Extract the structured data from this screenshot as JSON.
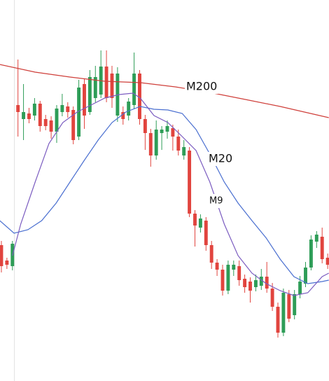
{
  "chart_data": {
    "type": "candlestick",
    "x": [
      0,
      1,
      2,
      3,
      4,
      5,
      6,
      7,
      8,
      9,
      10,
      11,
      12,
      13,
      14,
      15,
      16,
      17,
      18,
      19,
      20,
      21,
      22,
      23,
      24,
      25,
      26,
      27,
      28,
      29,
      30,
      31,
      32,
      33,
      34,
      35,
      36,
      37,
      38,
      39,
      40,
      41,
      42,
      43,
      44,
      45,
      46,
      47,
      48,
      49,
      50,
      51,
      52,
      53,
      54,
      55,
      56,
      57,
      58,
      59
    ],
    "open": [
      194,
      172,
      164,
      394,
      374,
      382,
      379,
      396,
      374,
      372,
      356,
      384,
      392,
      387,
      349,
      424,
      384,
      404,
      409,
      449,
      439,
      379,
      384,
      379,
      394,
      439,
      374,
      354,
      322,
      354,
      356,
      361,
      349,
      322,
      329,
      239,
      219,
      229,
      194,
      169,
      159,
      129,
      159,
      164,
      146,
      142,
      134,
      136,
      149,
      132,
      106,
      69,
      124,
      94,
      124,
      139,
      162,
      199,
      206,
      176
    ],
    "high": [
      200,
      176,
      200,
      459,
      424,
      390,
      404,
      400,
      380,
      378,
      394,
      410,
      398,
      392,
      430,
      432,
      444,
      450,
      472,
      472,
      450,
      448,
      392,
      404,
      469,
      444,
      380,
      360,
      372,
      364,
      372,
      366,
      359,
      344,
      334,
      244,
      238,
      234,
      200,
      174,
      166,
      172,
      172,
      172,
      152,
      148,
      152,
      160,
      170,
      140,
      112,
      132,
      130,
      130,
      150,
      170,
      208,
      214,
      219,
      182
    ],
    "low": [
      155,
      160,
      158,
      349,
      344,
      368,
      372,
      356,
      358,
      346,
      340,
      378,
      376,
      338,
      344,
      360,
      380,
      398,
      404,
      398,
      390,
      370,
      366,
      372,
      388,
      366,
      330,
      306,
      316,
      330,
      346,
      329,
      322,
      316,
      234,
      192,
      212,
      186,
      160,
      150,
      122,
      124,
      150,
      136,
      126,
      112,
      128,
      130,
      126,
      100,
      62,
      64,
      84,
      88,
      118,
      134,
      158,
      190,
      168,
      160
    ],
    "close": [
      164,
      166,
      196,
      384,
      384,
      374,
      396,
      364,
      364,
      356,
      389,
      394,
      384,
      344,
      419,
      379,
      434,
      434,
      449,
      404,
      404,
      439,
      374,
      399,
      439,
      374,
      354,
      322,
      359,
      359,
      364,
      349,
      329,
      334,
      239,
      222,
      232,
      194,
      169,
      159,
      129,
      166,
      166,
      144,
      134,
      129,
      144,
      149,
      132,
      106,
      69,
      126,
      89,
      124,
      142,
      162,
      202,
      209,
      174,
      166
    ],
    "up_color": "#2e9d57",
    "down_color": "#e1443e",
    "xlim": [
      -0.25,
      59.24
    ],
    "ylim": [
      0,
      544
    ],
    "series": [
      {
        "name": "M200",
        "color": "#cf3f3a",
        "x": [
          -0.3,
          6.1,
          12.4,
          18.7,
          25.1,
          31.4,
          37.7,
          44.1,
          50.4,
          59.2
        ],
        "values": [
          452,
          441,
          434,
          428,
          426,
          420,
          412,
          402,
          392,
          376
        ]
      },
      {
        "name": "M20",
        "color": "#4a6fd0",
        "x": [
          -0.3,
          2.3,
          4.8,
          7.3,
          9.9,
          12.4,
          14.9,
          17.5,
          20.0,
          22.5,
          25.1,
          27.6,
          30.1,
          32.7,
          35.2,
          37.7,
          40.3,
          42.8,
          45.3,
          47.9,
          50.4,
          52.9,
          55.4,
          58.0,
          59.2
        ],
        "values": [
          229,
          211,
          216,
          229,
          254,
          284,
          314,
          344,
          369,
          384,
          392,
          388,
          387,
          382,
          359,
          324,
          284,
          254,
          229,
          204,
          174,
          149,
          139,
          142,
          144
        ]
      },
      {
        "name": "M9",
        "color": "#7b5cc0",
        "x": [
          2.0,
          3.5,
          6.1,
          8.6,
          11.1,
          13.7,
          16.2,
          18.7,
          21.3,
          23.8,
          25.1,
          27.6,
          30.1,
          32.7,
          35.2,
          37.7,
          40.3,
          42.8,
          45.3,
          47.9,
          50.4,
          52.9,
          55.4,
          58.0,
          59.2
        ],
        "values": [
          179,
          224,
          284,
          339,
          369,
          384,
          394,
          404,
          409,
          411,
          404,
          379,
          369,
          349,
          329,
          284,
          224,
          179,
          154,
          139,
          129,
          122,
          126,
          149,
          154
        ]
      }
    ]
  }
}
